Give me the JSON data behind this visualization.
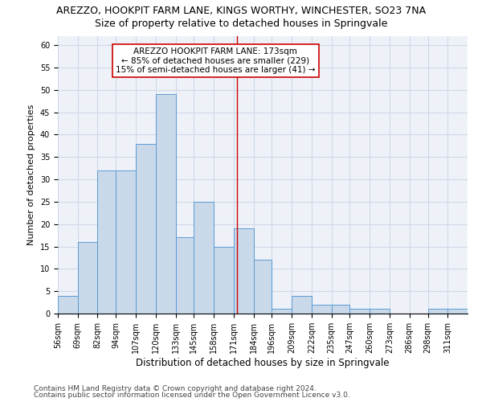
{
  "title": "AREZZO, HOOKPIT FARM LANE, KINGS WORTHY, WINCHESTER, SO23 7NA",
  "subtitle": "Size of property relative to detached houses in Springvale",
  "xlabel": "Distribution of detached houses by size in Springvale",
  "ylabel": "Number of detached properties",
  "bin_labels": [
    "56sqm",
    "69sqm",
    "82sqm",
    "94sqm",
    "107sqm",
    "120sqm",
    "133sqm",
    "145sqm",
    "158sqm",
    "171sqm",
    "184sqm",
    "196sqm",
    "209sqm",
    "222sqm",
    "235sqm",
    "247sqm",
    "260sqm",
    "273sqm",
    "286sqm",
    "298sqm",
    "311sqm"
  ],
  "bin_edges": [
    56,
    69,
    82,
    94,
    107,
    120,
    133,
    145,
    158,
    171,
    184,
    196,
    209,
    222,
    235,
    247,
    260,
    273,
    286,
    298,
    311,
    324
  ],
  "bar_values": [
    4,
    16,
    32,
    32,
    38,
    49,
    17,
    25,
    15,
    19,
    12,
    1,
    4,
    2,
    2,
    1,
    1,
    0,
    0,
    1,
    1
  ],
  "bar_face_color": "#c9d9ea",
  "bar_edge_color": "#5b9bd5",
  "vline_x": 173,
  "vline_color": "#cc0000",
  "annotation_line1": "AREZZO HOOKPIT FARM LANE: 173sqm",
  "annotation_line2": "← 85% of detached houses are smaller (229)",
  "annotation_line3": "15% of semi-detached houses are larger (41) →",
  "annotation_box_color": "#ffffff",
  "annotation_box_edge": "#cc0000",
  "ylim": [
    0,
    62
  ],
  "yticks": [
    0,
    5,
    10,
    15,
    20,
    25,
    30,
    35,
    40,
    45,
    50,
    55,
    60
  ],
  "grid_color": "#d0d8e8",
  "background_color": "#eef2f8",
  "footer_line1": "Contains HM Land Registry data © Crown copyright and database right 2024.",
  "footer_line2": "Contains public sector information licensed under the Open Government Licence v3.0.",
  "title_fontsize": 9,
  "subtitle_fontsize": 9,
  "xlabel_fontsize": 8.5,
  "ylabel_fontsize": 8,
  "tick_fontsize": 7,
  "annotation_fontsize": 7.5,
  "footer_fontsize": 6.5
}
